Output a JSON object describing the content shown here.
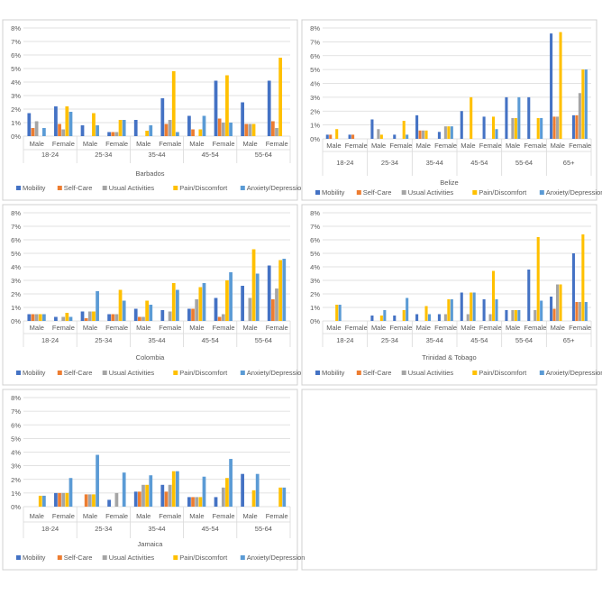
{
  "legend_labels": [
    "Mobility",
    "Self-Care",
    "Usual Activities",
    "Pain/Discomfort",
    "Anxiety/Depression"
  ],
  "colors": [
    "#4472C4",
    "#ED7D31",
    "#A5A5A5",
    "#FFC000",
    "#5B9BD5"
  ],
  "chart_data": [
    {
      "type": "bar",
      "title": "Barbados",
      "y_ticks": [
        "0%",
        "1%",
        "2%",
        "3%",
        "4%",
        "5%",
        "6%",
        "7%",
        "8%"
      ],
      "ylim": [
        0,
        8
      ],
      "groups": [
        "18-24",
        "25-34",
        "35-44",
        "45-54",
        "55-64"
      ],
      "categories": [
        "Male",
        "Female",
        "Male",
        "Female",
        "Male",
        "Female",
        "Male",
        "Female",
        "Male",
        "Female"
      ],
      "series": [
        {
          "name": "Mobility",
          "values": [
            1.7,
            2.2,
            0.8,
            0.3,
            1.2,
            2.8,
            1.5,
            4.1,
            2.5,
            4.1
          ]
        },
        {
          "name": "Self-Care",
          "values": [
            0.6,
            0.9,
            0,
            0.3,
            0,
            0.9,
            0.5,
            1.3,
            0.9,
            1.1
          ]
        },
        {
          "name": "Usual Activities",
          "values": [
            1.1,
            0.5,
            0,
            0.3,
            0,
            1.2,
            0,
            1.0,
            0.9,
            0.6
          ]
        },
        {
          "name": "Pain/Discomfort",
          "values": [
            0,
            2.2,
            1.7,
            1.2,
            0.4,
            4.8,
            0.5,
            4.5,
            0.9,
            5.8
          ]
        },
        {
          "name": "Anxiety/Depression",
          "values": [
            0.6,
            1.8,
            0.8,
            1.2,
            0.8,
            0.3,
            1.5,
            1.0,
            0,
            0
          ]
        }
      ]
    },
    {
      "type": "bar",
      "title": "Belize",
      "y_ticks": [
        "0%",
        "1%",
        "2%",
        "3%",
        "4%",
        "5%",
        "6%",
        "7%",
        "8%"
      ],
      "ylim": [
        0,
        8
      ],
      "groups": [
        "18-24",
        "25-34",
        "35-44",
        "45-54",
        "55-64",
        "65+"
      ],
      "categories": [
        "Male",
        "Female",
        "Male",
        "Female",
        "Male",
        "Female",
        "Male",
        "Female",
        "Male",
        "Female",
        "Male",
        "Female"
      ],
      "series": [
        {
          "name": "Mobility",
          "values": [
            0.3,
            0.3,
            1.4,
            0.3,
            1.7,
            0.5,
            2.0,
            1.6,
            3.0,
            3.0,
            7.6,
            1.7
          ]
        },
        {
          "name": "Self-Care",
          "values": [
            0.3,
            0.3,
            0,
            0,
            0.6,
            0,
            0,
            0,
            0,
            0,
            1.6,
            1.7
          ]
        },
        {
          "name": "Usual Activities",
          "values": [
            0,
            0,
            0.7,
            0,
            0.6,
            0.9,
            0,
            0,
            1.5,
            0,
            1.6,
            3.3
          ]
        },
        {
          "name": "Pain/Discomfort",
          "values": [
            0.7,
            0,
            0.3,
            1.3,
            0.6,
            0.9,
            3.0,
            1.6,
            1.5,
            1.5,
            7.7,
            5.0
          ]
        },
        {
          "name": "Anxiety/Depression",
          "values": [
            0,
            0,
            0,
            0.3,
            0,
            0.9,
            0,
            0.7,
            3.0,
            1.5,
            0,
            5.0
          ]
        }
      ]
    },
    {
      "type": "bar",
      "title": "Colombia",
      "y_ticks": [
        "0%",
        "1%",
        "2%",
        "3%",
        "4%",
        "5%",
        "6%",
        "7%",
        "8%"
      ],
      "ylim": [
        0,
        8
      ],
      "groups": [
        "18-24",
        "25-34",
        "35-44",
        "45-54",
        "55-64"
      ],
      "categories": [
        "Male",
        "Female",
        "Male",
        "Female",
        "Male",
        "Female",
        "Male",
        "Female",
        "Male",
        "Female"
      ],
      "series": [
        {
          "name": "Mobility",
          "values": [
            0.5,
            0.3,
            0.7,
            0.5,
            0.9,
            0.8,
            0.9,
            1.7,
            2.6,
            4.1
          ]
        },
        {
          "name": "Self-Care",
          "values": [
            0.5,
            0,
            0.2,
            0.5,
            0.3,
            0,
            0.9,
            0.3,
            0,
            1.6
          ]
        },
        {
          "name": "Usual Activities",
          "values": [
            0.5,
            0.3,
            0.7,
            0.5,
            0.3,
            0.7,
            1.6,
            0.5,
            1.7,
            2.4
          ]
        },
        {
          "name": "Pain/Discomfort",
          "values": [
            0.5,
            0.6,
            0.7,
            2.3,
            1.5,
            2.8,
            2.5,
            3.0,
            5.3,
            4.5
          ]
        },
        {
          "name": "Anxiety/Depression",
          "values": [
            0.5,
            0.3,
            2.2,
            1.5,
            1.2,
            2.3,
            2.8,
            3.6,
            3.5,
            4.6
          ]
        }
      ]
    },
    {
      "type": "bar",
      "title": "Trinidad & Tobago",
      "y_ticks": [
        "0%",
        "1%",
        "2%",
        "3%",
        "4%",
        "5%",
        "6%",
        "7%",
        "8%"
      ],
      "ylim": [
        0,
        8
      ],
      "groups": [
        "18-24",
        "25-34",
        "35-44",
        "45-54",
        "55-64",
        "65+"
      ],
      "categories": [
        "Male",
        "Female",
        "Male",
        "Female",
        "Male",
        "Female",
        "Male",
        "Female",
        "Male",
        "Female",
        "Male",
        "Female"
      ],
      "series": [
        {
          "name": "Mobility",
          "values": [
            0,
            0,
            0.4,
            0.4,
            0.5,
            0.5,
            2.1,
            1.6,
            0.8,
            3.8,
            1.8,
            5.0
          ]
        },
        {
          "name": "Self-Care",
          "values": [
            0,
            0,
            0,
            0,
            0,
            0,
            0,
            0,
            0,
            0,
            0.9,
            1.4
          ]
        },
        {
          "name": "Usual Activities",
          "values": [
            0,
            0,
            0,
            0,
            0,
            0.5,
            0.5,
            0.5,
            0.8,
            0.8,
            2.7,
            1.4
          ]
        },
        {
          "name": "Pain/Discomfort",
          "values": [
            1.2,
            0,
            0.4,
            0.8,
            1.1,
            1.6,
            2.1,
            3.7,
            0.8,
            6.2,
            2.7,
            6.4
          ]
        },
        {
          "name": "Anxiety/Depression",
          "values": [
            1.2,
            0,
            0.8,
            1.7,
            0.5,
            1.6,
            2.1,
            1.6,
            0.8,
            1.5,
            0,
            1.4
          ]
        }
      ]
    },
    {
      "type": "bar",
      "title": "Jamaica",
      "y_ticks": [
        "0%",
        "1%",
        "2%",
        "3%",
        "4%",
        "5%",
        "6%",
        "7%",
        "8%"
      ],
      "ylim": [
        0,
        8
      ],
      "groups": [
        "18-24",
        "25-34",
        "35-44",
        "45-54",
        "55-64"
      ],
      "categories": [
        "Male",
        "Female",
        "Male",
        "Female",
        "Male",
        "Female",
        "Male",
        "Female",
        "Male",
        "Female"
      ],
      "series": [
        {
          "name": "Mobility",
          "values": [
            0,
            1.0,
            0,
            0.5,
            1.1,
            1.6,
            0.7,
            0.7,
            2.4,
            0
          ]
        },
        {
          "name": "Self-Care",
          "values": [
            0,
            1.0,
            0.9,
            0,
            1.1,
            1.1,
            0.7,
            0,
            0,
            0
          ]
        },
        {
          "name": "Usual Activities",
          "values": [
            0,
            1.0,
            0.9,
            1.0,
            1.6,
            1.6,
            0.7,
            1.4,
            0,
            0
          ]
        },
        {
          "name": "Pain/Discomfort",
          "values": [
            0.8,
            1.0,
            0.9,
            0,
            1.6,
            2.6,
            0.7,
            2.1,
            1.2,
            1.4
          ]
        },
        {
          "name": "Anxiety/Depression",
          "values": [
            0.8,
            2.1,
            3.8,
            2.5,
            2.3,
            2.6,
            2.2,
            3.5,
            2.4,
            1.4
          ]
        }
      ]
    }
  ]
}
